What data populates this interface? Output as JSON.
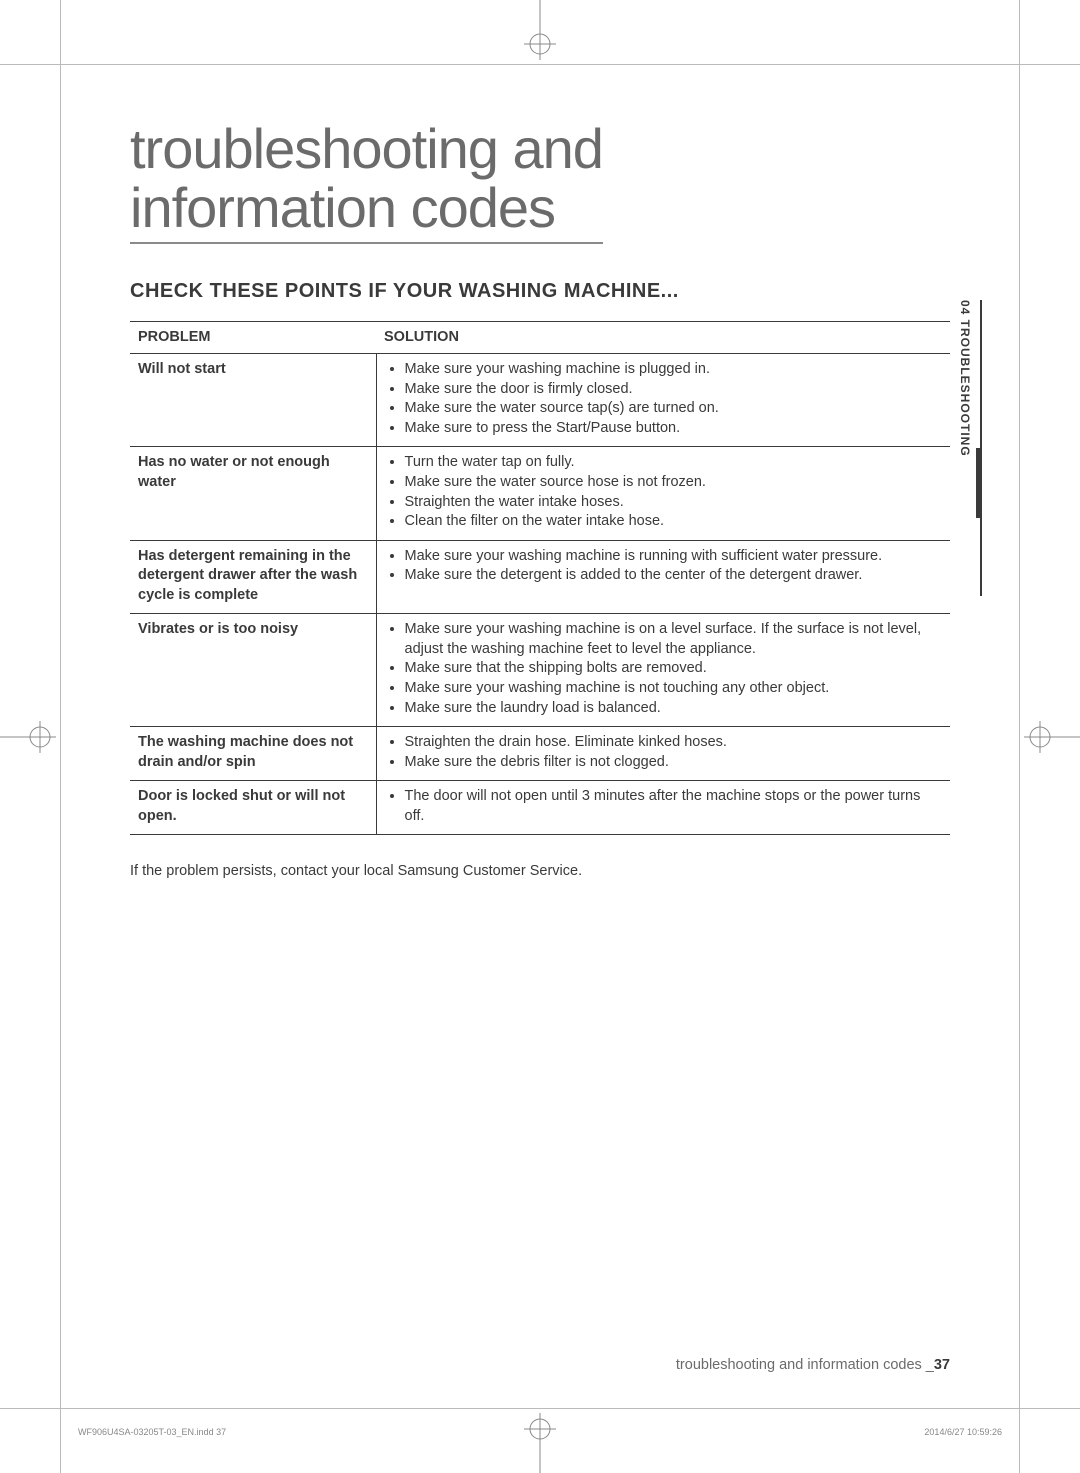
{
  "title_line1": "troubleshooting and",
  "title_line2": "information codes",
  "subtitle": "CHECK THESE POINTS IF YOUR WASHING MACHINE...",
  "table": {
    "header_problem": "PROBLEM",
    "header_solution": "SOLUTION",
    "rows": [
      {
        "problem": "Will not start",
        "solutions": [
          "Make sure your washing machine is plugged in.",
          "Make sure the door is firmly closed.",
          "Make sure the water source tap(s) are turned on.",
          "Make sure to press the Start/Pause button."
        ]
      },
      {
        "problem": "Has no water or not enough water",
        "solutions": [
          "Turn the water tap on fully.",
          "Make sure the water source hose is not frozen.",
          "Straighten the water intake hoses.",
          "Clean the filter on the water intake hose."
        ]
      },
      {
        "problem": "Has detergent remaining in the detergent drawer after the wash cycle is complete",
        "solutions": [
          "Make sure your washing machine is running with sufficient water pressure.",
          "Make sure the detergent is added to the center of the detergent drawer."
        ]
      },
      {
        "problem": "Vibrates or is too noisy",
        "solutions": [
          "Make sure your washing machine is on a level surface. If the surface is not level, adjust the washing machine feet to level the appliance.",
          "Make sure that the shipping bolts are removed.",
          "Make sure your washing machine is not touching any other object.",
          "Make sure the laundry load is balanced."
        ]
      },
      {
        "problem": "The washing machine does not drain and/or spin",
        "solutions": [
          "Straighten the drain hose. Eliminate kinked hoses.",
          "Make sure the debris filter is not clogged."
        ]
      },
      {
        "problem": "Door is locked shut or will not open.",
        "solutions": [
          "The door will not open until 3 minutes after the machine stops or the power turns off."
        ]
      }
    ]
  },
  "note": "If the problem persists, contact your local Samsung Customer Service.",
  "side_tab": "04  TROUBLESHOOTING",
  "footer": {
    "section": "troubleshooting and information codes _",
    "page": "37"
  },
  "imprint_left": "WF906U4SA-03205T-03_EN.indd   37",
  "imprint_right": "2014/6/27   10:59:26",
  "colors": {
    "text": "#3a3a3a",
    "muted": "#6b6b6b",
    "rule": "#3a3a3a",
    "crop": "#888888",
    "background": "#ffffff"
  }
}
